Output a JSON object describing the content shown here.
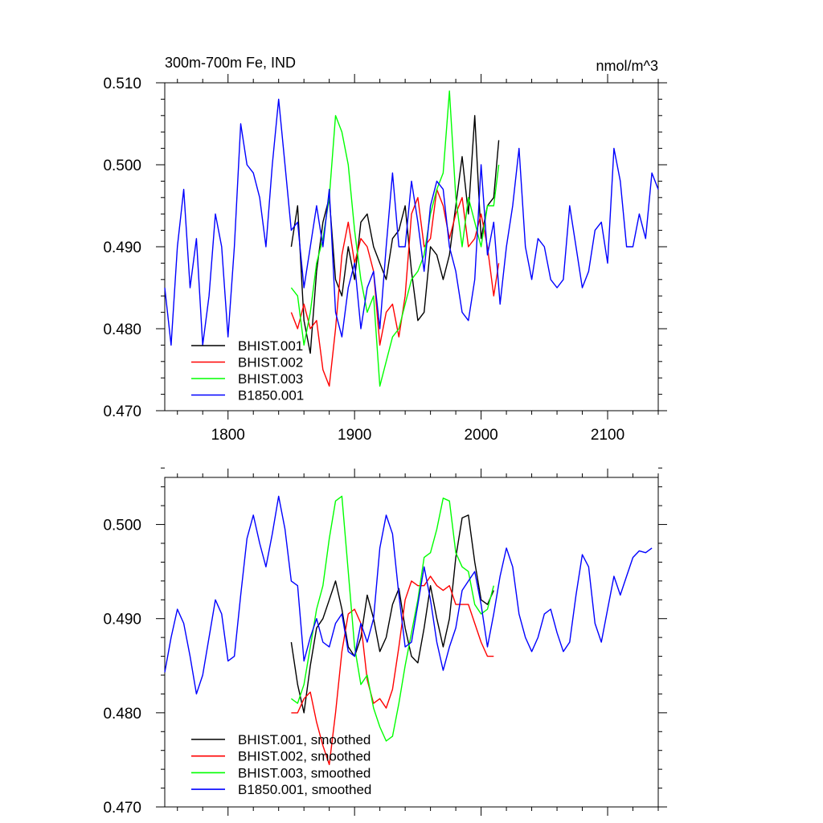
{
  "colors": {
    "BHIST.001": "#000000",
    "BHIST.002": "#ff0000",
    "BHIST.003": "#00ff00",
    "B1850.001": "#0000ff"
  },
  "chart_data": [
    {
      "type": "line",
      "title": "300m-700m Fe, IND",
      "units": "nmol/m^3",
      "xlim": [
        1750,
        2140
      ],
      "ylim": [
        0.47,
        0.51
      ],
      "x_ticks": [
        1800,
        1900,
        2000,
        2100
      ],
      "x_tick_labels": [
        "1800",
        "1900",
        "2000",
        "2100"
      ],
      "y_ticks": [
        0.47,
        0.48,
        0.49,
        0.5,
        0.51
      ],
      "y_tick_labels": [
        "0.470",
        "0.480",
        "0.490",
        "0.500",
        "0.510"
      ],
      "legend_position": "bottom-left",
      "series": [
        {
          "name": "BHIST.001",
          "x": [
            1850,
            1855,
            1860,
            1865,
            1870,
            1875,
            1880,
            1885,
            1890,
            1895,
            1900,
            1905,
            1910,
            1915,
            1920,
            1925,
            1930,
            1935,
            1940,
            1945,
            1950,
            1955,
            1960,
            1965,
            1970,
            1975,
            1980,
            1985,
            1990,
            1995,
            2000,
            2005,
            2010,
            2014
          ],
          "y": [
            0.49,
            0.495,
            0.481,
            0.477,
            0.487,
            0.493,
            0.496,
            0.486,
            0.484,
            0.49,
            0.486,
            0.493,
            0.494,
            0.49,
            0.488,
            0.486,
            0.491,
            0.492,
            0.495,
            0.487,
            0.481,
            0.482,
            0.49,
            0.489,
            0.486,
            0.489,
            0.495,
            0.501,
            0.494,
            0.506,
            0.491,
            0.495,
            0.496,
            0.503
          ]
        },
        {
          "name": "BHIST.002",
          "x": [
            1850,
            1855,
            1860,
            1865,
            1870,
            1875,
            1880,
            1885,
            1890,
            1895,
            1900,
            1905,
            1910,
            1915,
            1920,
            1925,
            1930,
            1935,
            1940,
            1945,
            1950,
            1955,
            1960,
            1965,
            1970,
            1975,
            1980,
            1985,
            1990,
            1995,
            2000,
            2005,
            2010,
            2014
          ],
          "y": [
            0.482,
            0.48,
            0.483,
            0.48,
            0.481,
            0.475,
            0.473,
            0.48,
            0.489,
            0.493,
            0.488,
            0.491,
            0.49,
            0.487,
            0.478,
            0.482,
            0.483,
            0.479,
            0.484,
            0.494,
            0.496,
            0.49,
            0.491,
            0.497,
            0.495,
            0.491,
            0.494,
            0.496,
            0.49,
            0.491,
            0.494,
            0.49,
            0.484,
            0.488
          ]
        },
        {
          "name": "BHIST.003",
          "x": [
            1850,
            1855,
            1860,
            1865,
            1870,
            1875,
            1880,
            1885,
            1890,
            1895,
            1900,
            1905,
            1910,
            1915,
            1920,
            1925,
            1930,
            1935,
            1940,
            1945,
            1950,
            1955,
            1960,
            1965,
            1970,
            1975,
            1980,
            1985,
            1990,
            1995,
            2000,
            2005,
            2010,
            2014
          ],
          "y": [
            0.485,
            0.484,
            0.478,
            0.482,
            0.488,
            0.491,
            0.496,
            0.506,
            0.504,
            0.5,
            0.492,
            0.486,
            0.482,
            0.484,
            0.473,
            0.476,
            0.479,
            0.48,
            0.483,
            0.486,
            0.487,
            0.489,
            0.494,
            0.497,
            0.499,
            0.509,
            0.496,
            0.49,
            0.496,
            0.493,
            0.49,
            0.495,
            0.495,
            0.5
          ]
        },
        {
          "name": "B1850.001",
          "x": [
            1750,
            1755,
            1760,
            1765,
            1770,
            1775,
            1780,
            1785,
            1790,
            1795,
            1800,
            1805,
            1810,
            1815,
            1820,
            1825,
            1830,
            1835,
            1840,
            1845,
            1850,
            1855,
            1860,
            1865,
            1870,
            1875,
            1880,
            1885,
            1890,
            1895,
            1900,
            1905,
            1910,
            1915,
            1920,
            1925,
            1930,
            1935,
            1940,
            1945,
            1950,
            1955,
            1960,
            1965,
            1970,
            1975,
            1980,
            1985,
            1990,
            1995,
            2000,
            2005,
            2010,
            2015,
            2020,
            2025,
            2030,
            2035,
            2040,
            2045,
            2050,
            2055,
            2060,
            2065,
            2070,
            2075,
            2080,
            2085,
            2090,
            2095,
            2100,
            2105,
            2110,
            2115,
            2120,
            2125,
            2130,
            2135,
            2140
          ],
          "y": [
            0.485,
            0.478,
            0.49,
            0.497,
            0.485,
            0.491,
            0.478,
            0.484,
            0.494,
            0.49,
            0.479,
            0.49,
            0.505,
            0.5,
            0.499,
            0.496,
            0.49,
            0.5,
            0.508,
            0.5,
            0.492,
            0.493,
            0.485,
            0.49,
            0.495,
            0.49,
            0.497,
            0.482,
            0.479,
            0.485,
            0.488,
            0.48,
            0.485,
            0.487,
            0.48,
            0.49,
            0.499,
            0.49,
            0.49,
            0.498,
            0.493,
            0.487,
            0.495,
            0.498,
            0.497,
            0.49,
            0.487,
            0.482,
            0.481,
            0.486,
            0.5,
            0.489,
            0.493,
            0.483,
            0.49,
            0.495,
            0.502,
            0.49,
            0.486,
            0.491,
            0.49,
            0.486,
            0.485,
            0.486,
            0.495,
            0.49,
            0.485,
            0.487,
            0.492,
            0.493,
            0.488,
            0.502,
            0.498,
            0.49,
            0.49,
            0.494,
            0.491,
            0.499,
            0.497
          ]
        }
      ]
    },
    {
      "type": "line",
      "xlim": [
        1750,
        2140
      ],
      "ylim": [
        0.47,
        0.505
      ],
      "x_ticks": [
        1800,
        1900,
        2000,
        2100
      ],
      "y_ticks": [
        0.47,
        0.48,
        0.49,
        0.5
      ],
      "y_tick_labels": [
        "0.470",
        "0.480",
        "0.490",
        "0.500"
      ],
      "legend_position": "bottom-left",
      "series": [
        {
          "name": "BHIST.001, smoothed",
          "x": [
            1850,
            1855,
            1860,
            1865,
            1870,
            1875,
            1880,
            1885,
            1890,
            1895,
            1900,
            1905,
            1910,
            1915,
            1920,
            1925,
            1930,
            1935,
            1940,
            1945,
            1950,
            1955,
            1960,
            1965,
            1970,
            1975,
            1980,
            1985,
            1990,
            1995,
            2000,
            2005,
            2010
          ],
          "y": [
            0.4875,
            0.483,
            0.48,
            0.485,
            0.489,
            0.49,
            0.492,
            0.494,
            0.491,
            0.487,
            0.486,
            0.488,
            0.4925,
            0.49,
            0.4865,
            0.488,
            0.4915,
            0.4932,
            0.489,
            0.486,
            0.4853,
            0.489,
            0.4935,
            0.49,
            0.487,
            0.49,
            0.4965,
            0.5007,
            0.501,
            0.496,
            0.492,
            0.4915,
            0.493
          ]
        },
        {
          "name": "BHIST.002, smoothed",
          "x": [
            1850,
            1855,
            1860,
            1865,
            1870,
            1875,
            1880,
            1885,
            1890,
            1895,
            1900,
            1905,
            1910,
            1915,
            1920,
            1925,
            1930,
            1935,
            1940,
            1945,
            1950,
            1955,
            1960,
            1965,
            1970,
            1975,
            1980,
            1985,
            1990,
            1995,
            2000,
            2005,
            2010
          ],
          "y": [
            0.48,
            0.48,
            0.4815,
            0.4822,
            0.479,
            0.4765,
            0.4745,
            0.48,
            0.4865,
            0.4905,
            0.491,
            0.4895,
            0.4835,
            0.481,
            0.4815,
            0.4805,
            0.4825,
            0.487,
            0.492,
            0.494,
            0.4935,
            0.4935,
            0.4945,
            0.4935,
            0.493,
            0.4935,
            0.4915,
            0.4915,
            0.4915,
            0.4895,
            0.4875,
            0.486,
            0.486
          ]
        },
        {
          "name": "BHIST.003, smoothed",
          "x": [
            1850,
            1855,
            1860,
            1865,
            1870,
            1875,
            1880,
            1885,
            1890,
            1895,
            1900,
            1905,
            1910,
            1915,
            1920,
            1925,
            1930,
            1935,
            1940,
            1945,
            1950,
            1955,
            1960,
            1965,
            1970,
            1975,
            1980,
            1985,
            1990,
            1995,
            2000,
            2005,
            2010
          ],
          "y": [
            0.4815,
            0.481,
            0.483,
            0.487,
            0.491,
            0.4935,
            0.4985,
            0.5025,
            0.503,
            0.495,
            0.487,
            0.483,
            0.484,
            0.4805,
            0.4785,
            0.477,
            0.4775,
            0.481,
            0.485,
            0.4885,
            0.492,
            0.4965,
            0.497,
            0.4995,
            0.5028,
            0.5025,
            0.497,
            0.4955,
            0.495,
            0.4915,
            0.4905,
            0.491,
            0.4935
          ]
        },
        {
          "name": "B1850.001, smoothed",
          "x": [
            1750,
            1755,
            1760,
            1765,
            1770,
            1775,
            1780,
            1785,
            1790,
            1795,
            1800,
            1805,
            1810,
            1815,
            1820,
            1825,
            1830,
            1835,
            1840,
            1845,
            1850,
            1855,
            1860,
            1865,
            1870,
            1875,
            1880,
            1885,
            1890,
            1895,
            1900,
            1905,
            1910,
            1915,
            1920,
            1925,
            1930,
            1935,
            1940,
            1945,
            1950,
            1955,
            1960,
            1965,
            1970,
            1975,
            1980,
            1985,
            1990,
            1995,
            2000,
            2005,
            2010,
            2015,
            2020,
            2025,
            2030,
            2035,
            2040,
            2045,
            2050,
            2055,
            2060,
            2065,
            2070,
            2075,
            2080,
            2085,
            2090,
            2095,
            2100,
            2105,
            2110,
            2115,
            2120,
            2125,
            2130,
            2135
          ],
          "y": [
            0.4843,
            0.488,
            0.491,
            0.4895,
            0.486,
            0.482,
            0.484,
            0.488,
            0.492,
            0.4905,
            0.4855,
            0.486,
            0.4925,
            0.4985,
            0.501,
            0.498,
            0.4955,
            0.499,
            0.503,
            0.4995,
            0.494,
            0.4935,
            0.4855,
            0.488,
            0.49,
            0.4875,
            0.487,
            0.4895,
            0.4905,
            0.4865,
            0.486,
            0.4895,
            0.4875,
            0.49,
            0.4975,
            0.501,
            0.499,
            0.4925,
            0.487,
            0.4875,
            0.4915,
            0.4955,
            0.492,
            0.4875,
            0.4845,
            0.487,
            0.489,
            0.493,
            0.494,
            0.495,
            0.4915,
            0.487,
            0.4905,
            0.4945,
            0.4975,
            0.4955,
            0.4905,
            0.488,
            0.4865,
            0.488,
            0.4905,
            0.491,
            0.4885,
            0.4865,
            0.4875,
            0.4925,
            0.4968,
            0.4955,
            0.4895,
            0.4875,
            0.491,
            0.4945,
            0.4925,
            0.4945,
            0.4965,
            0.4972,
            0.497,
            0.4975
          ]
        }
      ]
    }
  ]
}
